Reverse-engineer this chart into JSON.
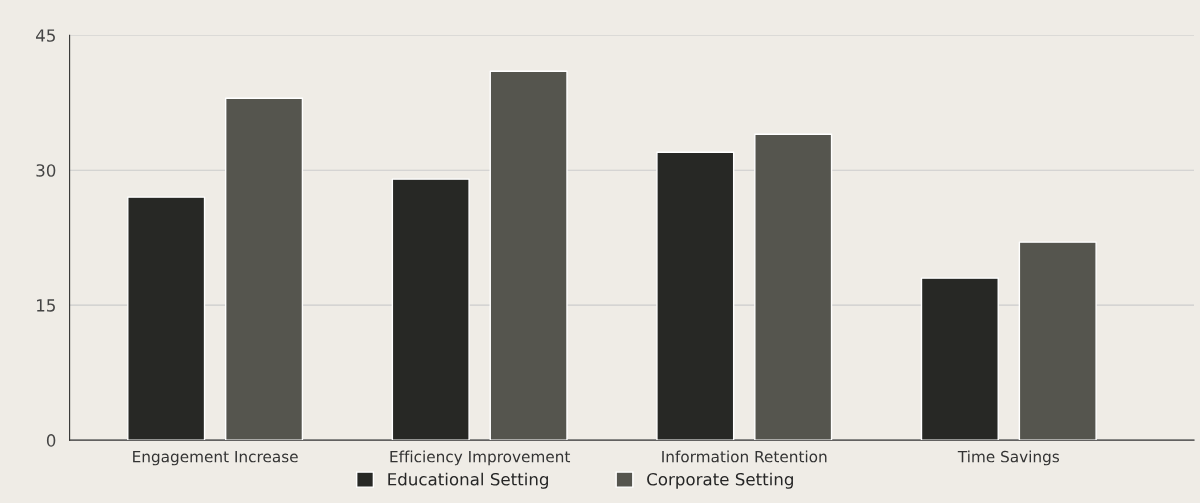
{
  "chart_data": {
    "type": "bar",
    "categories": [
      "Engagement Increase",
      "Efficiency Improvement",
      "Information Retention",
      "Time Savings"
    ],
    "series": [
      {
        "name": "Educational Setting",
        "color": "#272825",
        "values": [
          27,
          29,
          32,
          18
        ]
      },
      {
        "name": "Corporate Setting",
        "color": "#55554e",
        "values": [
          38,
          41,
          34,
          22
        ]
      }
    ],
    "ylim": [
      0,
      45
    ],
    "yticks": [
      0,
      15,
      30,
      45
    ],
    "grid": "y",
    "legend": "bottom"
  }
}
